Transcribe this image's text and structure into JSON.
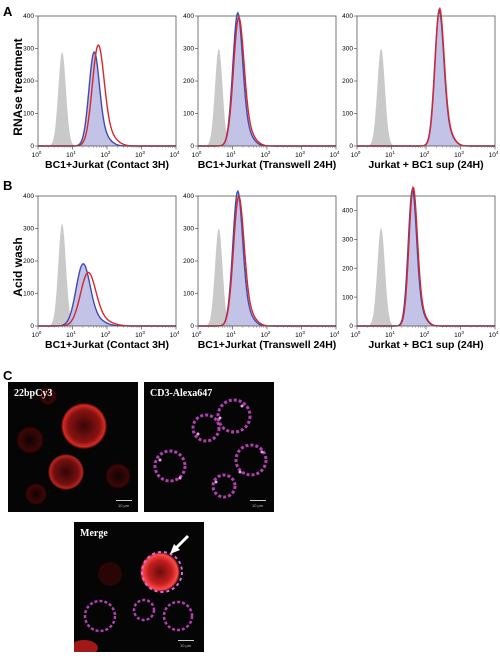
{
  "panels": {
    "a": "A",
    "b": "B",
    "c": "C"
  },
  "row_labels": {
    "a": "RNAse treatment",
    "b": "Acid wash"
  },
  "chart_data": [
    {
      "type": "area",
      "id": "A1",
      "row": 0,
      "col": 0,
      "xlabel": "BC1+Jurkat (Contact 3H)",
      "xscale": "log",
      "xlim": [
        1,
        10000
      ],
      "ylim": [
        0,
        400
      ],
      "yticks": [
        0,
        100,
        200,
        300,
        400
      ],
      "series": [
        {
          "role": "control",
          "color": "#c9c9c9",
          "peak_x": 5,
          "peak_y": 290,
          "width_decades": 0.11
        },
        {
          "role": "blue",
          "color": "#3e4bb0",
          "peak_x": 42,
          "peak_y": 272,
          "width_decades": 0.15
        },
        {
          "role": "red",
          "color": "#d9262c",
          "peak_x": 55,
          "peak_y": 292,
          "width_decades": 0.17
        }
      ]
    },
    {
      "type": "area",
      "id": "A2",
      "row": 0,
      "col": 1,
      "xlabel": "BC1+Jurkat (Transwell 24H)",
      "xscale": "log",
      "xlim": [
        1,
        10000
      ],
      "ylim": [
        0,
        400
      ],
      "yticks": [
        0,
        100,
        200,
        300,
        400
      ],
      "series": [
        {
          "role": "control",
          "color": "#c9c9c9",
          "peak_x": 4,
          "peak_y": 300,
          "width_decades": 0.11
        },
        {
          "role": "blue",
          "color": "#3e4bb0",
          "peak_x": 14,
          "peak_y": 385,
          "width_decades": 0.14
        },
        {
          "role": "red",
          "color": "#d9262c",
          "peak_x": 15,
          "peak_y": 372,
          "width_decades": 0.15
        }
      ]
    },
    {
      "type": "area",
      "id": "A3",
      "row": 0,
      "col": 2,
      "xlabel": "Jurkat + BC1 sup (24H)",
      "xscale": "log",
      "xlim": [
        1,
        10000
      ],
      "ylim": [
        0,
        400
      ],
      "yticks": [
        0,
        100,
        200,
        300,
        400
      ],
      "series": [
        {
          "role": "control",
          "color": "#c9c9c9",
          "peak_x": 5,
          "peak_y": 300,
          "width_decades": 0.11
        },
        {
          "role": "blue",
          "color": "#3e4bb0",
          "peak_x": 240,
          "peak_y": 392,
          "width_decades": 0.13
        },
        {
          "role": "red",
          "color": "#d9262c",
          "peak_x": 245,
          "peak_y": 398,
          "width_decades": 0.13
        }
      ]
    },
    {
      "type": "area",
      "id": "B1",
      "row": 1,
      "col": 0,
      "xlabel": "BC1+Jurkat (Contact 3H)",
      "xscale": "log",
      "xlim": [
        1,
        10000
      ],
      "ylim": [
        0,
        400
      ],
      "yticks": [
        0,
        100,
        200,
        300,
        400
      ],
      "series": [
        {
          "role": "control",
          "color": "#c9c9c9",
          "peak_x": 5,
          "peak_y": 315,
          "width_decades": 0.11
        },
        {
          "role": "blue",
          "color": "#3e4bb0",
          "peak_x": 20,
          "peak_y": 180,
          "width_decades": 0.2
        },
        {
          "role": "red",
          "color": "#d9262c",
          "peak_x": 28,
          "peak_y": 155,
          "width_decades": 0.22
        }
      ]
    },
    {
      "type": "area",
      "id": "B2",
      "row": 1,
      "col": 1,
      "xlabel": "BC1+Jurkat (Transwell 24H)",
      "xscale": "log",
      "xlim": [
        1,
        10000
      ],
      "ylim": [
        0,
        400
      ],
      "yticks": [
        0,
        100,
        200,
        300,
        400
      ],
      "series": [
        {
          "role": "control",
          "color": "#c9c9c9",
          "peak_x": 4,
          "peak_y": 300,
          "width_decades": 0.11
        },
        {
          "role": "blue",
          "color": "#3e4bb0",
          "peak_x": 14,
          "peak_y": 390,
          "width_decades": 0.14
        },
        {
          "role": "red",
          "color": "#d9262c",
          "peak_x": 15,
          "peak_y": 375,
          "width_decades": 0.15
        }
      ]
    },
    {
      "type": "area",
      "id": "B3",
      "row": 1,
      "col": 2,
      "xlabel": "Jurkat + BC1 sup (24H)",
      "xscale": "log",
      "xlim": [
        1,
        10000
      ],
      "ylim": [
        0,
        450
      ],
      "yticks": [
        0,
        100,
        200,
        300,
        400
      ],
      "series": [
        {
          "role": "control",
          "color": "#c9c9c9",
          "peak_x": 5,
          "peak_y": 340,
          "width_decades": 0.11
        },
        {
          "role": "blue",
          "color": "#3e4bb0",
          "peak_x": 40,
          "peak_y": 445,
          "width_decades": 0.12
        },
        {
          "role": "red",
          "color": "#d9262c",
          "peak_x": 42,
          "peak_y": 452,
          "width_decades": 0.12
        }
      ]
    }
  ],
  "micrographs": [
    {
      "id": "cy3",
      "label": "22bpCy3",
      "scalebar": "10 μm"
    },
    {
      "id": "alexa",
      "label": "CD3-Alexa647",
      "scalebar": "10 μm"
    },
    {
      "id": "merge",
      "label": "Merge",
      "scalebar": "10 μm"
    }
  ]
}
